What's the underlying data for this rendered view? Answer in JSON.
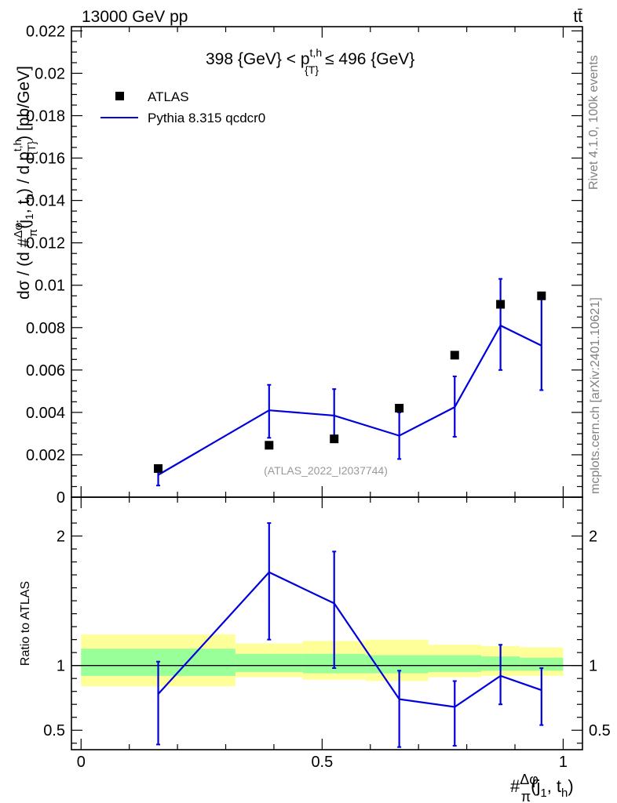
{
  "header": {
    "left": "13000 GeV pp",
    "right": "tt̄"
  },
  "side_labels": {
    "rivet": "Rivet 4.1.0,  100k events",
    "mcplots": "mcplots.cern.ch [arXiv:2401.10621]"
  },
  "chart_data": [
    {
      "type": "scatter+line",
      "title": "398 {GeV} < p^{t,h}_{T} ≤ 496 {GeV}",
      "title_parts": {
        "pre": "398 {GeV} < p",
        "sup": "t,h",
        "sub": "{T}",
        "post": "≤ 496 {GeV}"
      },
      "ylabel": "dσ / (d #Δφ/π (j1, th) / d p^{t,h}_{T}) [pb/GeV]",
      "ylabel_parts": {
        "a": "dσ / (d #",
        "frac_num": "Δφ",
        "frac_den": "π",
        "b": "(j",
        "b1": "1",
        "c": ", t",
        "c1": "h",
        "d": ") / d p",
        "d_sup": "t,h",
        "d_sub": "{T}",
        "e": ") [pb/GeV]"
      },
      "ylim": [
        0,
        0.0222
      ],
      "xlim": [
        -0.02,
        1.04
      ],
      "yticks": [
        0,
        0.002,
        0.004,
        0.006,
        0.008,
        0.01,
        0.012,
        0.014,
        0.016,
        0.018,
        0.02,
        0.022
      ],
      "ytick_labels": [
        "0",
        "0.002",
        "0.004",
        "0.006",
        "0.008",
        "0.01",
        "0.012",
        "0.014",
        "0.016",
        "0.018",
        "0.02",
        "0.022"
      ],
      "watermark": "(ATLAS_2022_I2037744)",
      "legend": [
        "ATLAS",
        "Pythia 8.315 qcdcr0"
      ],
      "series": [
        {
          "name": "ATLAS",
          "style": "markers",
          "color": "#000000",
          "x": [
            0.16,
            0.39,
            0.525,
            0.66,
            0.775,
            0.87,
            0.955
          ],
          "y": [
            0.00135,
            0.00245,
            0.00275,
            0.0042,
            0.0067,
            0.0091,
            0.0095
          ]
        },
        {
          "name": "Pythia 8.315 qcdcr0",
          "style": "line",
          "color": "#0000dd",
          "x": [
            0.16,
            0.39,
            0.525,
            0.66,
            0.775,
            0.87,
            0.955
          ],
          "y": [
            0.00105,
            0.0041,
            0.00385,
            0.0029,
            0.00425,
            0.0081,
            0.00715
          ],
          "yerr_low": [
            0.0005,
            0.0013,
            0.0011,
            0.0011,
            0.0014,
            0.0021,
            0.0021
          ],
          "yerr_high": [
            0.0002,
            0.0012,
            0.00125,
            0.0011,
            0.00145,
            0.0022,
            0.0022
          ]
        }
      ]
    },
    {
      "type": "ratio",
      "ylabel": "Ratio to ATLAS",
      "ylim": [
        0.35,
        2.3
      ],
      "xlim": [
        -0.02,
        1.04
      ],
      "yticks": [
        0.5,
        1,
        2
      ],
      "ytick_labels": [
        "0.5",
        "1",
        "2"
      ],
      "xticks": [
        0,
        0.5,
        1
      ],
      "xtick_labels": [
        "0",
        "0.5",
        "1"
      ],
      "xlabel_parts": {
        "a": "#",
        "frac_num": "Δφ",
        "frac_den": "π",
        "b": "(j",
        "b1": "1",
        "c": ", t",
        "c1": "h",
        "d": ")"
      },
      "bands": [
        {
          "x0": 0.0,
          "x1": 0.32,
          "yellow": [
            0.84,
            1.24
          ],
          "green": [
            0.92,
            1.13
          ]
        },
        {
          "x0": 0.32,
          "x1": 0.46,
          "yellow": [
            0.91,
            1.17
          ],
          "green": [
            0.95,
            1.09
          ]
        },
        {
          "x0": 0.46,
          "x1": 0.59,
          "yellow": [
            0.89,
            1.19
          ],
          "green": [
            0.94,
            1.09
          ]
        },
        {
          "x0": 0.59,
          "x1": 0.72,
          "yellow": [
            0.88,
            1.2
          ],
          "green": [
            0.94,
            1.08
          ]
        },
        {
          "x0": 0.72,
          "x1": 0.83,
          "yellow": [
            0.91,
            1.16
          ],
          "green": [
            0.95,
            1.08
          ]
        },
        {
          "x0": 0.83,
          "x1": 0.91,
          "yellow": [
            0.92,
            1.15
          ],
          "green": [
            0.96,
            1.07
          ]
        },
        {
          "x0": 0.91,
          "x1": 1.0,
          "yellow": [
            0.92,
            1.14
          ],
          "green": [
            0.96,
            1.06
          ]
        }
      ],
      "series": [
        {
          "name": "Pythia 8.315 qcdcr0",
          "color": "#0000dd",
          "x": [
            0.16,
            0.39,
            0.525,
            0.66,
            0.775,
            0.87,
            0.955
          ],
          "y": [
            0.78,
            1.72,
            1.48,
            0.74,
            0.68,
            0.92,
            0.81
          ],
          "yerr_low": [
            0.39,
            0.52,
            0.5,
            0.37,
            0.3,
            0.22,
            0.27
          ],
          "yerr_high": [
            0.25,
            0.38,
            0.4,
            0.22,
            0.2,
            0.24,
            0.17
          ]
        }
      ],
      "colors": {
        "yellow": "#ffff99",
        "green": "#99ff99",
        "line": "#0000dd"
      }
    }
  ]
}
